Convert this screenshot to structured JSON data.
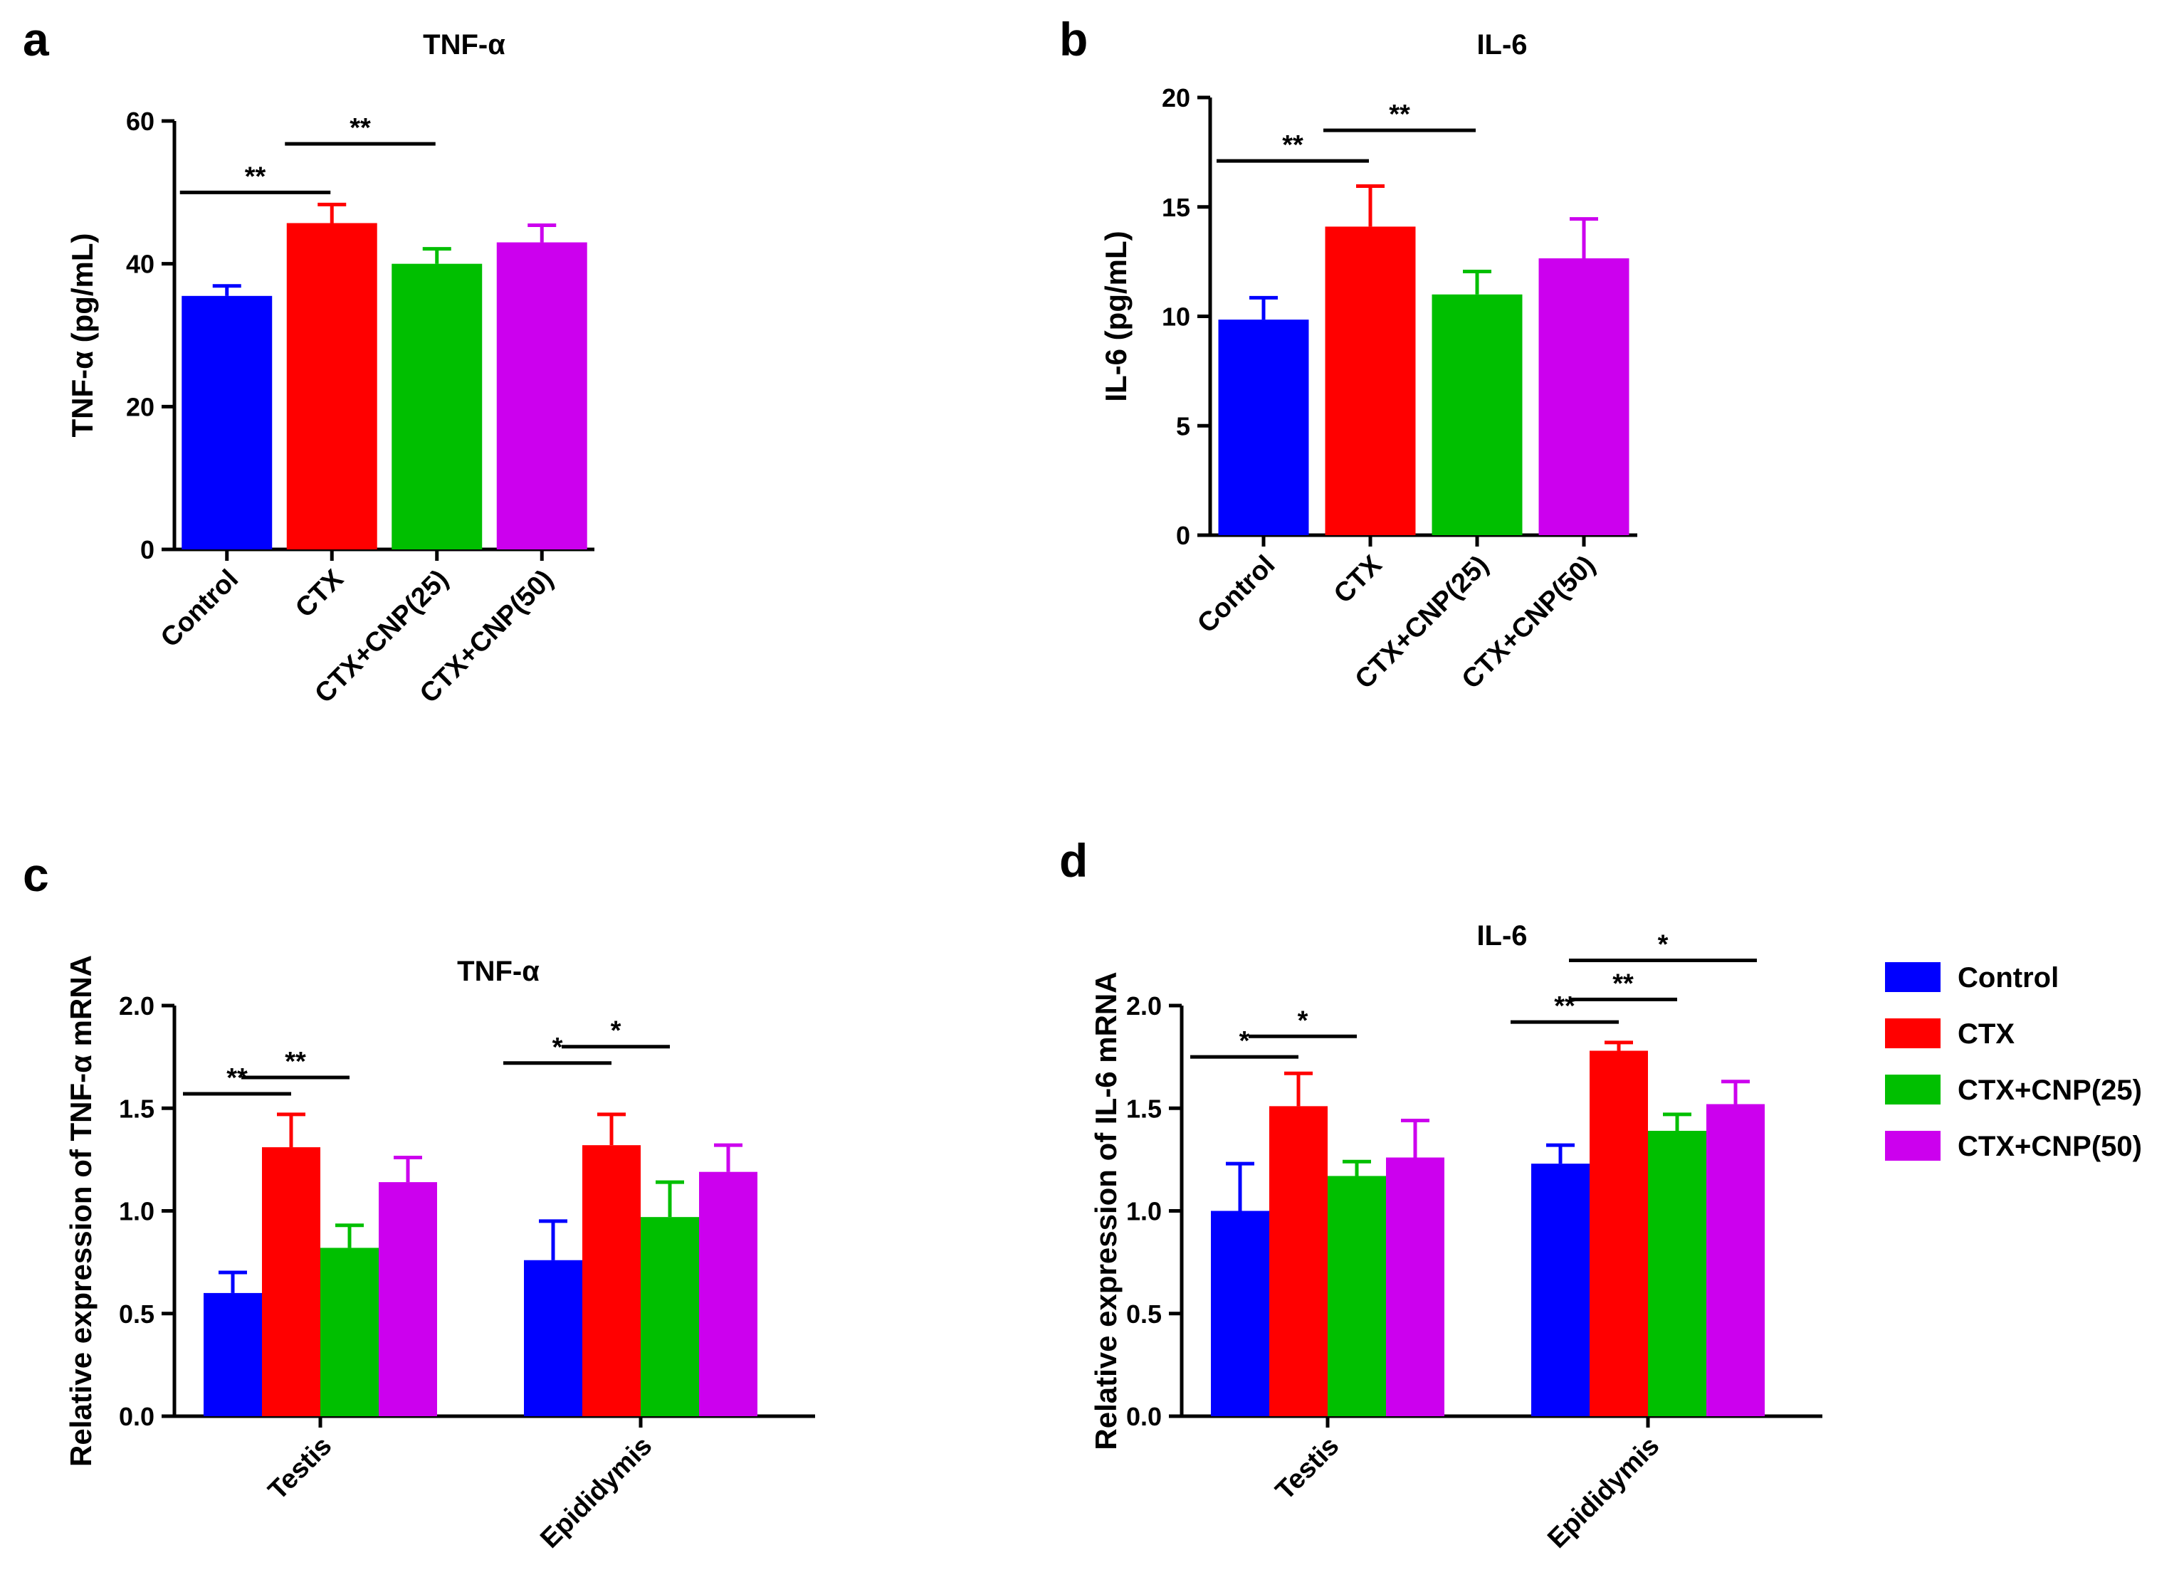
{
  "colors": {
    "Control": "#0000ff",
    "CTX": "#ff0000",
    "CTX+CNP(25)": "#00bf00",
    "CTX+CNP(50)": "#cc00ee"
  },
  "legend": {
    "entries": [
      "Control",
      "CTX",
      "CTX+CNP(25)",
      "CTX+CNP(50)"
    ]
  },
  "chart_data": [
    {
      "panel": "a",
      "type": "bar",
      "title": "TNF-α",
      "ylabel": "TNF-α (pg/mL)",
      "xlabel": "",
      "categories": [
        "Control",
        "CTX",
        "CTX+CNP(25)",
        "CTX+CNP(50)"
      ],
      "values": [
        35.5,
        45.7,
        40.0,
        43.0
      ],
      "errors": [
        1.4,
        2.6,
        2.1,
        2.4
      ],
      "ylim": [
        0,
        60
      ],
      "yticks": [
        "0",
        "20",
        "40",
        "60"
      ],
      "significance": [
        {
          "from": 0,
          "to": 1,
          "label": "**",
          "y": 50.0
        },
        {
          "from": 1,
          "to": 2,
          "label": "**",
          "y": 56.8
        }
      ]
    },
    {
      "panel": "b",
      "type": "bar",
      "title": "IL-6",
      "ylabel": "IL-6 (pg/mL)",
      "xlabel": "",
      "categories": [
        "Control",
        "CTX",
        "CTX+CNP(25)",
        "CTX+CNP(50)"
      ],
      "values": [
        9.85,
        14.1,
        11.0,
        12.65
      ],
      "errors": [
        1.0,
        1.85,
        1.05,
        1.8
      ],
      "ylim": [
        0,
        20
      ],
      "yticks": [
        "0",
        "5",
        "10",
        "15",
        "20"
      ],
      "significance": [
        {
          "from": 0,
          "to": 1,
          "label": "**",
          "y": 17.1
        },
        {
          "from": 1,
          "to": 2,
          "label": "**",
          "y": 18.5
        }
      ]
    },
    {
      "panel": "c",
      "type": "bar",
      "title": "TNF-α",
      "ylabel": "Relative expression of TNF-α mRNA",
      "xlabel": "",
      "categories": [
        "Testis",
        "Epididymis"
      ],
      "series": [
        {
          "name": "Control",
          "values": [
            0.6,
            0.76
          ],
          "errors": [
            0.1,
            0.19
          ]
        },
        {
          "name": "CTX",
          "values": [
            1.31,
            1.32
          ],
          "errors": [
            0.16,
            0.15
          ]
        },
        {
          "name": "CTX+CNP(25)",
          "values": [
            0.82,
            0.97
          ],
          "errors": [
            0.11,
            0.17
          ]
        },
        {
          "name": "CTX+CNP(50)",
          "values": [
            1.14,
            1.19
          ],
          "errors": [
            0.12,
            0.13
          ]
        }
      ],
      "ylim": [
        0,
        2.0
      ],
      "yticks": [
        "0.0",
        "0.5",
        "1.0",
        "1.5",
        "2.0"
      ],
      "significance": [
        {
          "group": 0,
          "from": 0,
          "to": 1,
          "label": "**",
          "y": 1.57
        },
        {
          "group": 0,
          "from": 1,
          "to": 2,
          "label": "**",
          "y": 1.65
        },
        {
          "group": 1,
          "from": 0,
          "to": 1,
          "label": "*",
          "y": 1.72
        },
        {
          "group": 1,
          "from": 1,
          "to": 2,
          "label": "*",
          "y": 1.8
        }
      ]
    },
    {
      "panel": "d",
      "type": "bar",
      "title": "IL-6",
      "ylabel": "Relative expression of IL-6 mRNA",
      "xlabel": "",
      "categories": [
        "Testis",
        "Epididymis"
      ],
      "series": [
        {
          "name": "Control",
          "values": [
            1.0,
            1.23
          ],
          "errors": [
            0.23,
            0.09
          ]
        },
        {
          "name": "CTX",
          "values": [
            1.51,
            1.78
          ],
          "errors": [
            0.16,
            0.04
          ]
        },
        {
          "name": "CTX+CNP(25)",
          "values": [
            1.17,
            1.39
          ],
          "errors": [
            0.07,
            0.08
          ]
        },
        {
          "name": "CTX+CNP(50)",
          "values": [
            1.26,
            1.52
          ],
          "errors": [
            0.18,
            0.11
          ]
        }
      ],
      "ylim": [
        0,
        2.0
      ],
      "yticks": [
        "0.0",
        "0.5",
        "1.0",
        "1.5",
        "2.0"
      ],
      "significance": [
        {
          "group": 0,
          "from": 0,
          "to": 1,
          "label": "*",
          "y": 1.75
        },
        {
          "group": 0,
          "from": 1,
          "to": 2,
          "label": "*",
          "y": 1.85
        },
        {
          "group": 1,
          "from": 0,
          "to": 1,
          "label": "**",
          "y": 1.92
        },
        {
          "group": 1,
          "from": 1,
          "to": 2,
          "label": "**",
          "y": 2.03
        },
        {
          "group": 1,
          "from": 1,
          "to": 3,
          "label": "*",
          "y": 2.22
        }
      ]
    }
  ]
}
